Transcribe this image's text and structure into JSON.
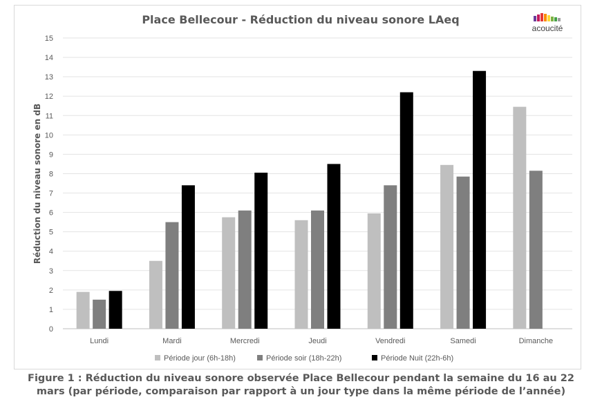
{
  "chart_data": {
    "type": "bar",
    "title": "Place Bellecour - Réduction du niveau sonore LAeq",
    "ylabel": "Réduction du niveau sonore en dB",
    "xlabel": "",
    "ylim": [
      0,
      15
    ],
    "yticks": [
      0,
      1,
      2,
      3,
      4,
      5,
      6,
      7,
      8,
      9,
      10,
      11,
      12,
      13,
      14,
      15
    ],
    "grid": true,
    "legend_position": "bottom",
    "categories": [
      "Lundi",
      "Mardi",
      "Mercredi",
      "Jeudi",
      "Vendredi",
      "Samedi",
      "Dimanche"
    ],
    "series": [
      {
        "name": "Période jour (6h-18h)",
        "color": "#bfbfbf",
        "values": [
          1.9,
          3.5,
          5.75,
          5.6,
          5.95,
          8.45,
          11.45
        ]
      },
      {
        "name": "Période soir (18h-22h)",
        "color": "#7f7f7f",
        "values": [
          1.5,
          5.5,
          6.1,
          6.1,
          7.4,
          7.85,
          8.15
        ]
      },
      {
        "name": "Période Nuit (22h-6h)",
        "color": "#000000",
        "values": [
          1.95,
          7.4,
          8.05,
          8.5,
          12.2,
          13.3,
          null
        ]
      }
    ]
  },
  "logo": {
    "text": "acoucité",
    "colors": [
      "#6a3d9a",
      "#c2185b",
      "#e53935",
      "#fb8c00",
      "#fdd835",
      "#7cb342",
      "#43a047",
      "#9e9e9e"
    ]
  },
  "caption": {
    "line1": "Figure 1 : Réduction du niveau sonore observée Place Bellecour pendant la semaine du 16 au 22",
    "line2": "mars (par période, comparaison par rapport à un jour type dans la même période de l’année)"
  }
}
